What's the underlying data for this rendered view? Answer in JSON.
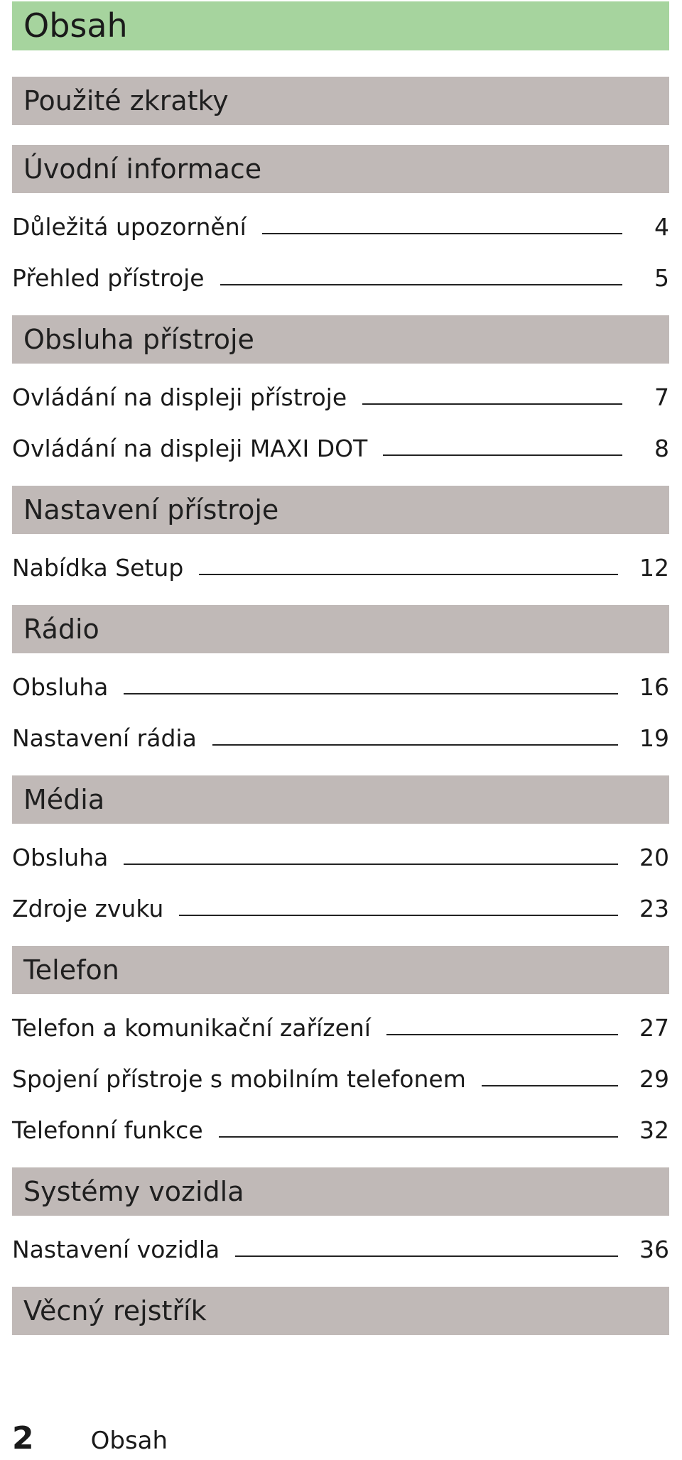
{
  "title": "Obsah",
  "sections": [
    {
      "heading": "Použité zkratky",
      "entries": []
    },
    {
      "heading": "Úvodní informace",
      "entries": [
        {
          "label": "Důležitá upozornění",
          "page": "4"
        },
        {
          "label": "Přehled přístroje",
          "page": "5"
        }
      ]
    },
    {
      "heading": "Obsluha přístroje",
      "entries": [
        {
          "label": "Ovládání na displeji přístroje",
          "page": "7"
        },
        {
          "label": "Ovládání na displeji MAXI DOT",
          "page": "8"
        }
      ]
    },
    {
      "heading": "Nastavení přístroje",
      "entries": [
        {
          "label": "Nabídka Setup",
          "page": "12"
        }
      ]
    },
    {
      "heading": "Rádio",
      "entries": [
        {
          "label": "Obsluha",
          "page": "16"
        },
        {
          "label": "Nastavení rádia",
          "page": "19"
        }
      ]
    },
    {
      "heading": "Média",
      "entries": [
        {
          "label": "Obsluha",
          "page": "20"
        },
        {
          "label": "Zdroje zvuku",
          "page": "23"
        }
      ]
    },
    {
      "heading": "Telefon",
      "entries": [
        {
          "label": "Telefon a komunikační zařízení",
          "page": "27"
        },
        {
          "label": "Spojení přístroje s mobilním telefonem",
          "page": "29"
        },
        {
          "label": "Telefonní funkce",
          "page": "32"
        }
      ]
    },
    {
      "heading": "Systémy vozidla",
      "entries": [
        {
          "label": "Nastavení vozidla",
          "page": "36"
        }
      ]
    },
    {
      "heading": "Věcný rejstřík",
      "entries": []
    }
  ],
  "footer": {
    "page_number": "2",
    "section_name": "Obsah"
  }
}
